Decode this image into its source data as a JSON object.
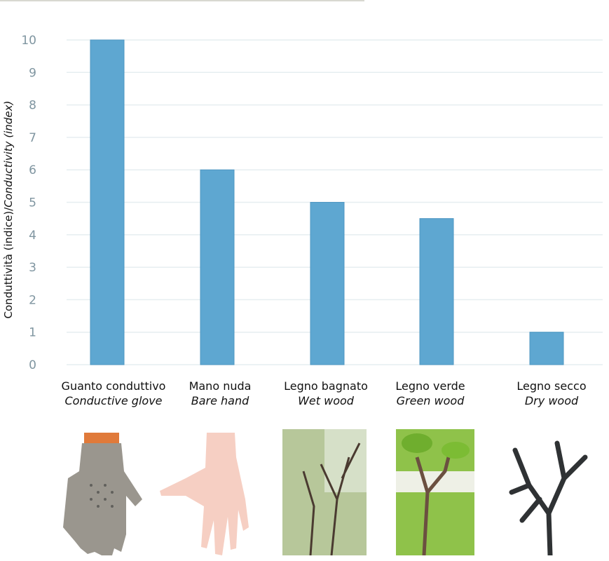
{
  "chart_data": {
    "type": "bar",
    "title": "",
    "xlabel": "",
    "ylabel": "Conduttività (indice)/",
    "ylabel_italic": "Conductivity (index)",
    "ylim": [
      0,
      10
    ],
    "yticks": [
      0,
      1,
      2,
      3,
      4,
      5,
      6,
      7,
      8,
      9,
      10
    ],
    "grid": true,
    "categories": [
      {
        "it": "Guanto conduttivo",
        "en": "Conductive glove"
      },
      {
        "it": "Mano nuda",
        "en": "Bare hand"
      },
      {
        "it": "Legno bagnato",
        "en": "Wet wood"
      },
      {
        "it": "Legno verde",
        "en": "Green wood"
      },
      {
        "it": "Legno secco",
        "en": "Dry wood"
      }
    ],
    "values": [
      10,
      6,
      5,
      4.5,
      1
    ],
    "bar_color": "#5ea7d1",
    "grid_color": "#e6eef0",
    "tick_color": "#7f95a0"
  },
  "photos": [
    "glove-photo",
    "hand-photo",
    "wet-wood-photo",
    "green-wood-photo",
    "dry-wood-photo"
  ]
}
